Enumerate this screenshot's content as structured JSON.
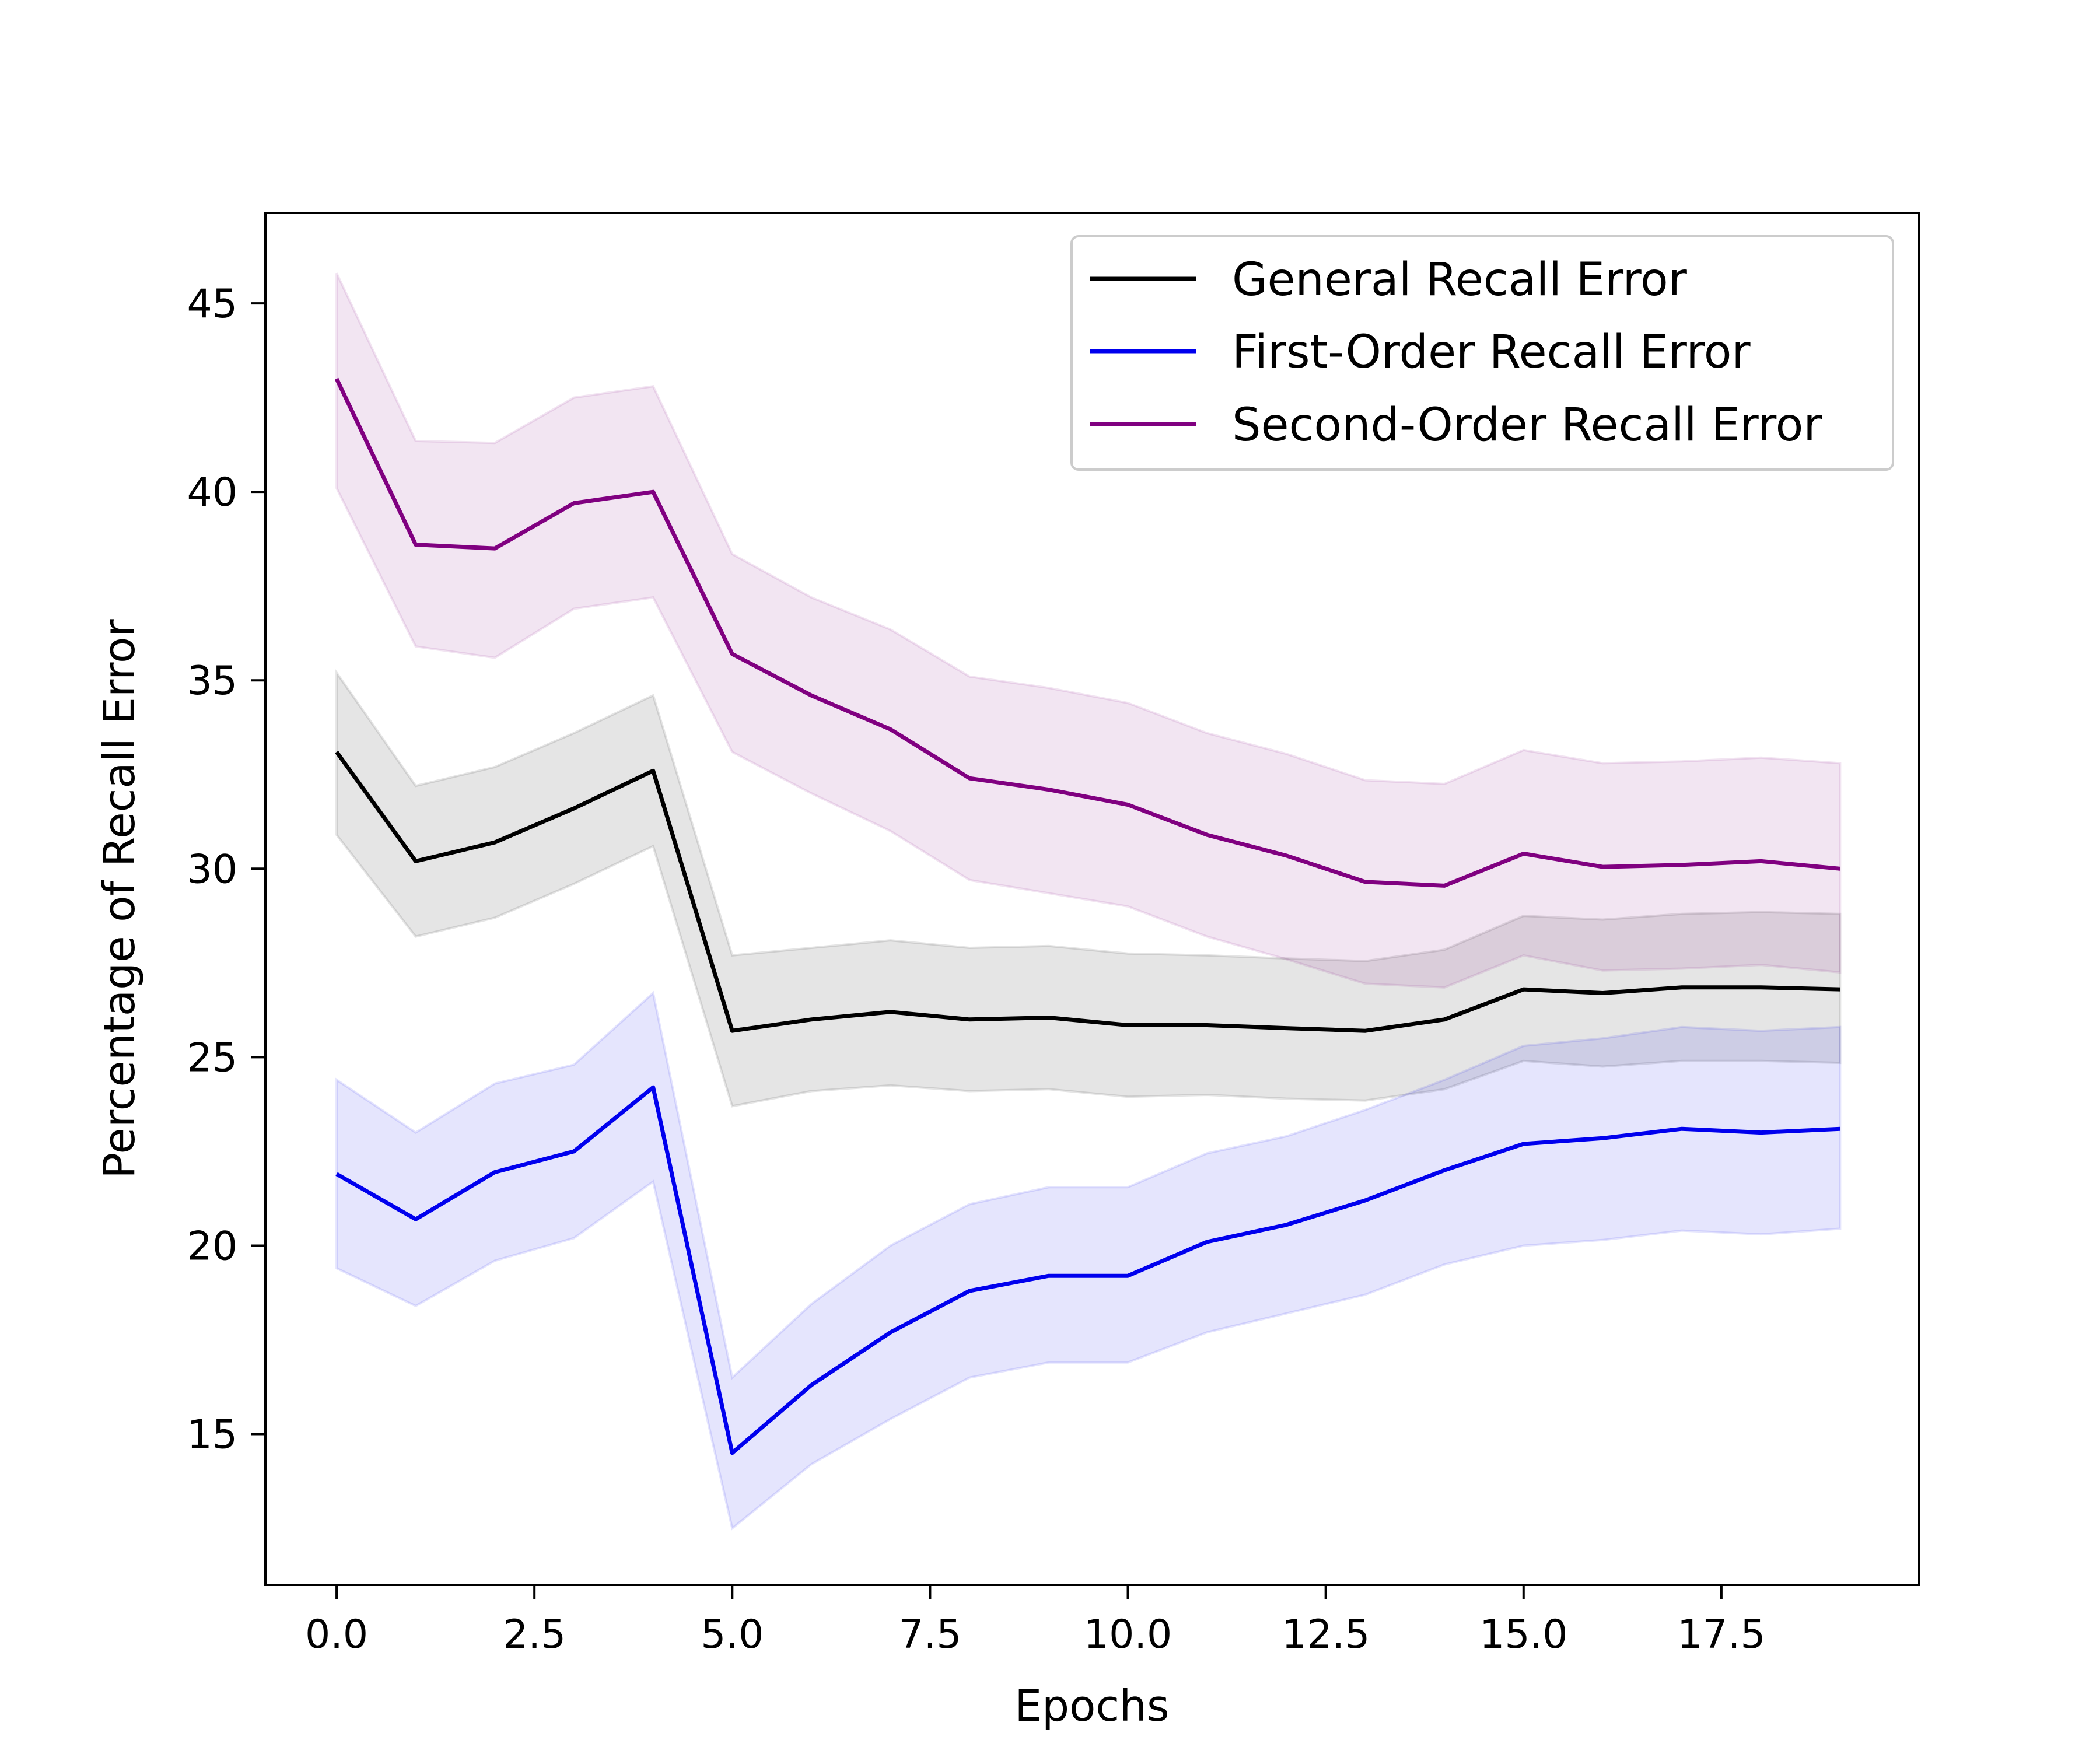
{
  "chart_data": {
    "type": "line",
    "title": "",
    "xlabel": "Epochs",
    "ylabel": "Percentage of Recall Error",
    "xlim": [
      -0.9,
      20.0
    ],
    "ylim": [
      11.0,
      47.4
    ],
    "xticks": [
      0.0,
      2.5,
      5.0,
      7.5,
      10.0,
      12.5,
      15.0,
      17.5
    ],
    "xtick_labels": [
      "0.0",
      "2.5",
      "5.0",
      "7.5",
      "10.0",
      "12.5",
      "15.0",
      "17.5"
    ],
    "yticks": [
      15,
      20,
      25,
      30,
      35,
      40,
      45
    ],
    "ytick_labels": [
      "15",
      "20",
      "25",
      "30",
      "35",
      "40",
      "45"
    ],
    "grid": false,
    "legend_position": "top-right",
    "x": [
      0,
      1,
      2,
      3,
      4,
      5,
      6,
      7,
      8,
      9,
      10,
      11,
      12,
      13,
      14,
      15,
      16,
      17,
      18,
      19
    ],
    "series": [
      {
        "name": "General Recall Error",
        "color": "#000000",
        "values": [
          33.1,
          30.2,
          30.7,
          31.6,
          32.6,
          25.7,
          26.0,
          26.2,
          26.0,
          26.05,
          25.85,
          25.85,
          25.77,
          25.7,
          26.0,
          26.8,
          26.7,
          26.85,
          26.85,
          26.8
        ],
        "lower": [
          30.9,
          28.2,
          28.7,
          29.6,
          30.6,
          23.7,
          24.1,
          24.25,
          24.1,
          24.15,
          23.95,
          24.0,
          23.9,
          23.85,
          24.15,
          24.9,
          24.75,
          24.9,
          24.9,
          24.85
        ],
        "upper": [
          35.2,
          32.2,
          32.7,
          33.6,
          34.6,
          27.7,
          27.9,
          28.1,
          27.9,
          27.95,
          27.75,
          27.7,
          27.62,
          27.55,
          27.85,
          28.75,
          28.65,
          28.8,
          28.85,
          28.8
        ]
      },
      {
        "name": "First-Order Recall Error",
        "color": "#0000ee",
        "values": [
          21.9,
          20.7,
          21.95,
          22.5,
          24.2,
          14.5,
          16.3,
          17.7,
          18.8,
          19.2,
          19.2,
          20.1,
          20.55,
          21.2,
          22.0,
          22.7,
          22.85,
          23.1,
          23.0,
          23.1
        ],
        "lower": [
          19.4,
          18.4,
          19.6,
          20.2,
          21.7,
          12.5,
          14.2,
          15.4,
          16.5,
          16.9,
          16.9,
          17.7,
          18.2,
          18.7,
          19.5,
          20.0,
          20.15,
          20.4,
          20.3,
          20.45
        ],
        "upper": [
          24.4,
          23.0,
          24.3,
          24.8,
          26.7,
          16.5,
          18.45,
          20.0,
          21.1,
          21.55,
          21.55,
          22.45,
          22.9,
          23.6,
          24.4,
          25.3,
          25.5,
          25.8,
          25.7,
          25.8
        ]
      },
      {
        "name": "Second-Order Recall Error",
        "color": "#800080",
        "values": [
          43.0,
          38.6,
          38.5,
          39.7,
          40.0,
          35.7,
          34.6,
          33.7,
          32.4,
          32.1,
          31.7,
          30.9,
          30.35,
          29.65,
          29.55,
          30.4,
          30.05,
          30.1,
          30.2,
          30.0
        ],
        "lower": [
          40.1,
          35.9,
          35.6,
          36.9,
          37.2,
          33.1,
          32.0,
          31.0,
          29.7,
          29.35,
          29.0,
          28.2,
          27.6,
          26.95,
          26.85,
          27.7,
          27.3,
          27.35,
          27.45,
          27.25
        ],
        "upper": [
          45.8,
          41.35,
          41.3,
          42.5,
          42.8,
          38.35,
          37.2,
          36.35,
          35.1,
          34.8,
          34.4,
          33.6,
          33.05,
          32.35,
          32.25,
          33.15,
          32.8,
          32.85,
          32.95,
          32.8
        ]
      }
    ]
  }
}
